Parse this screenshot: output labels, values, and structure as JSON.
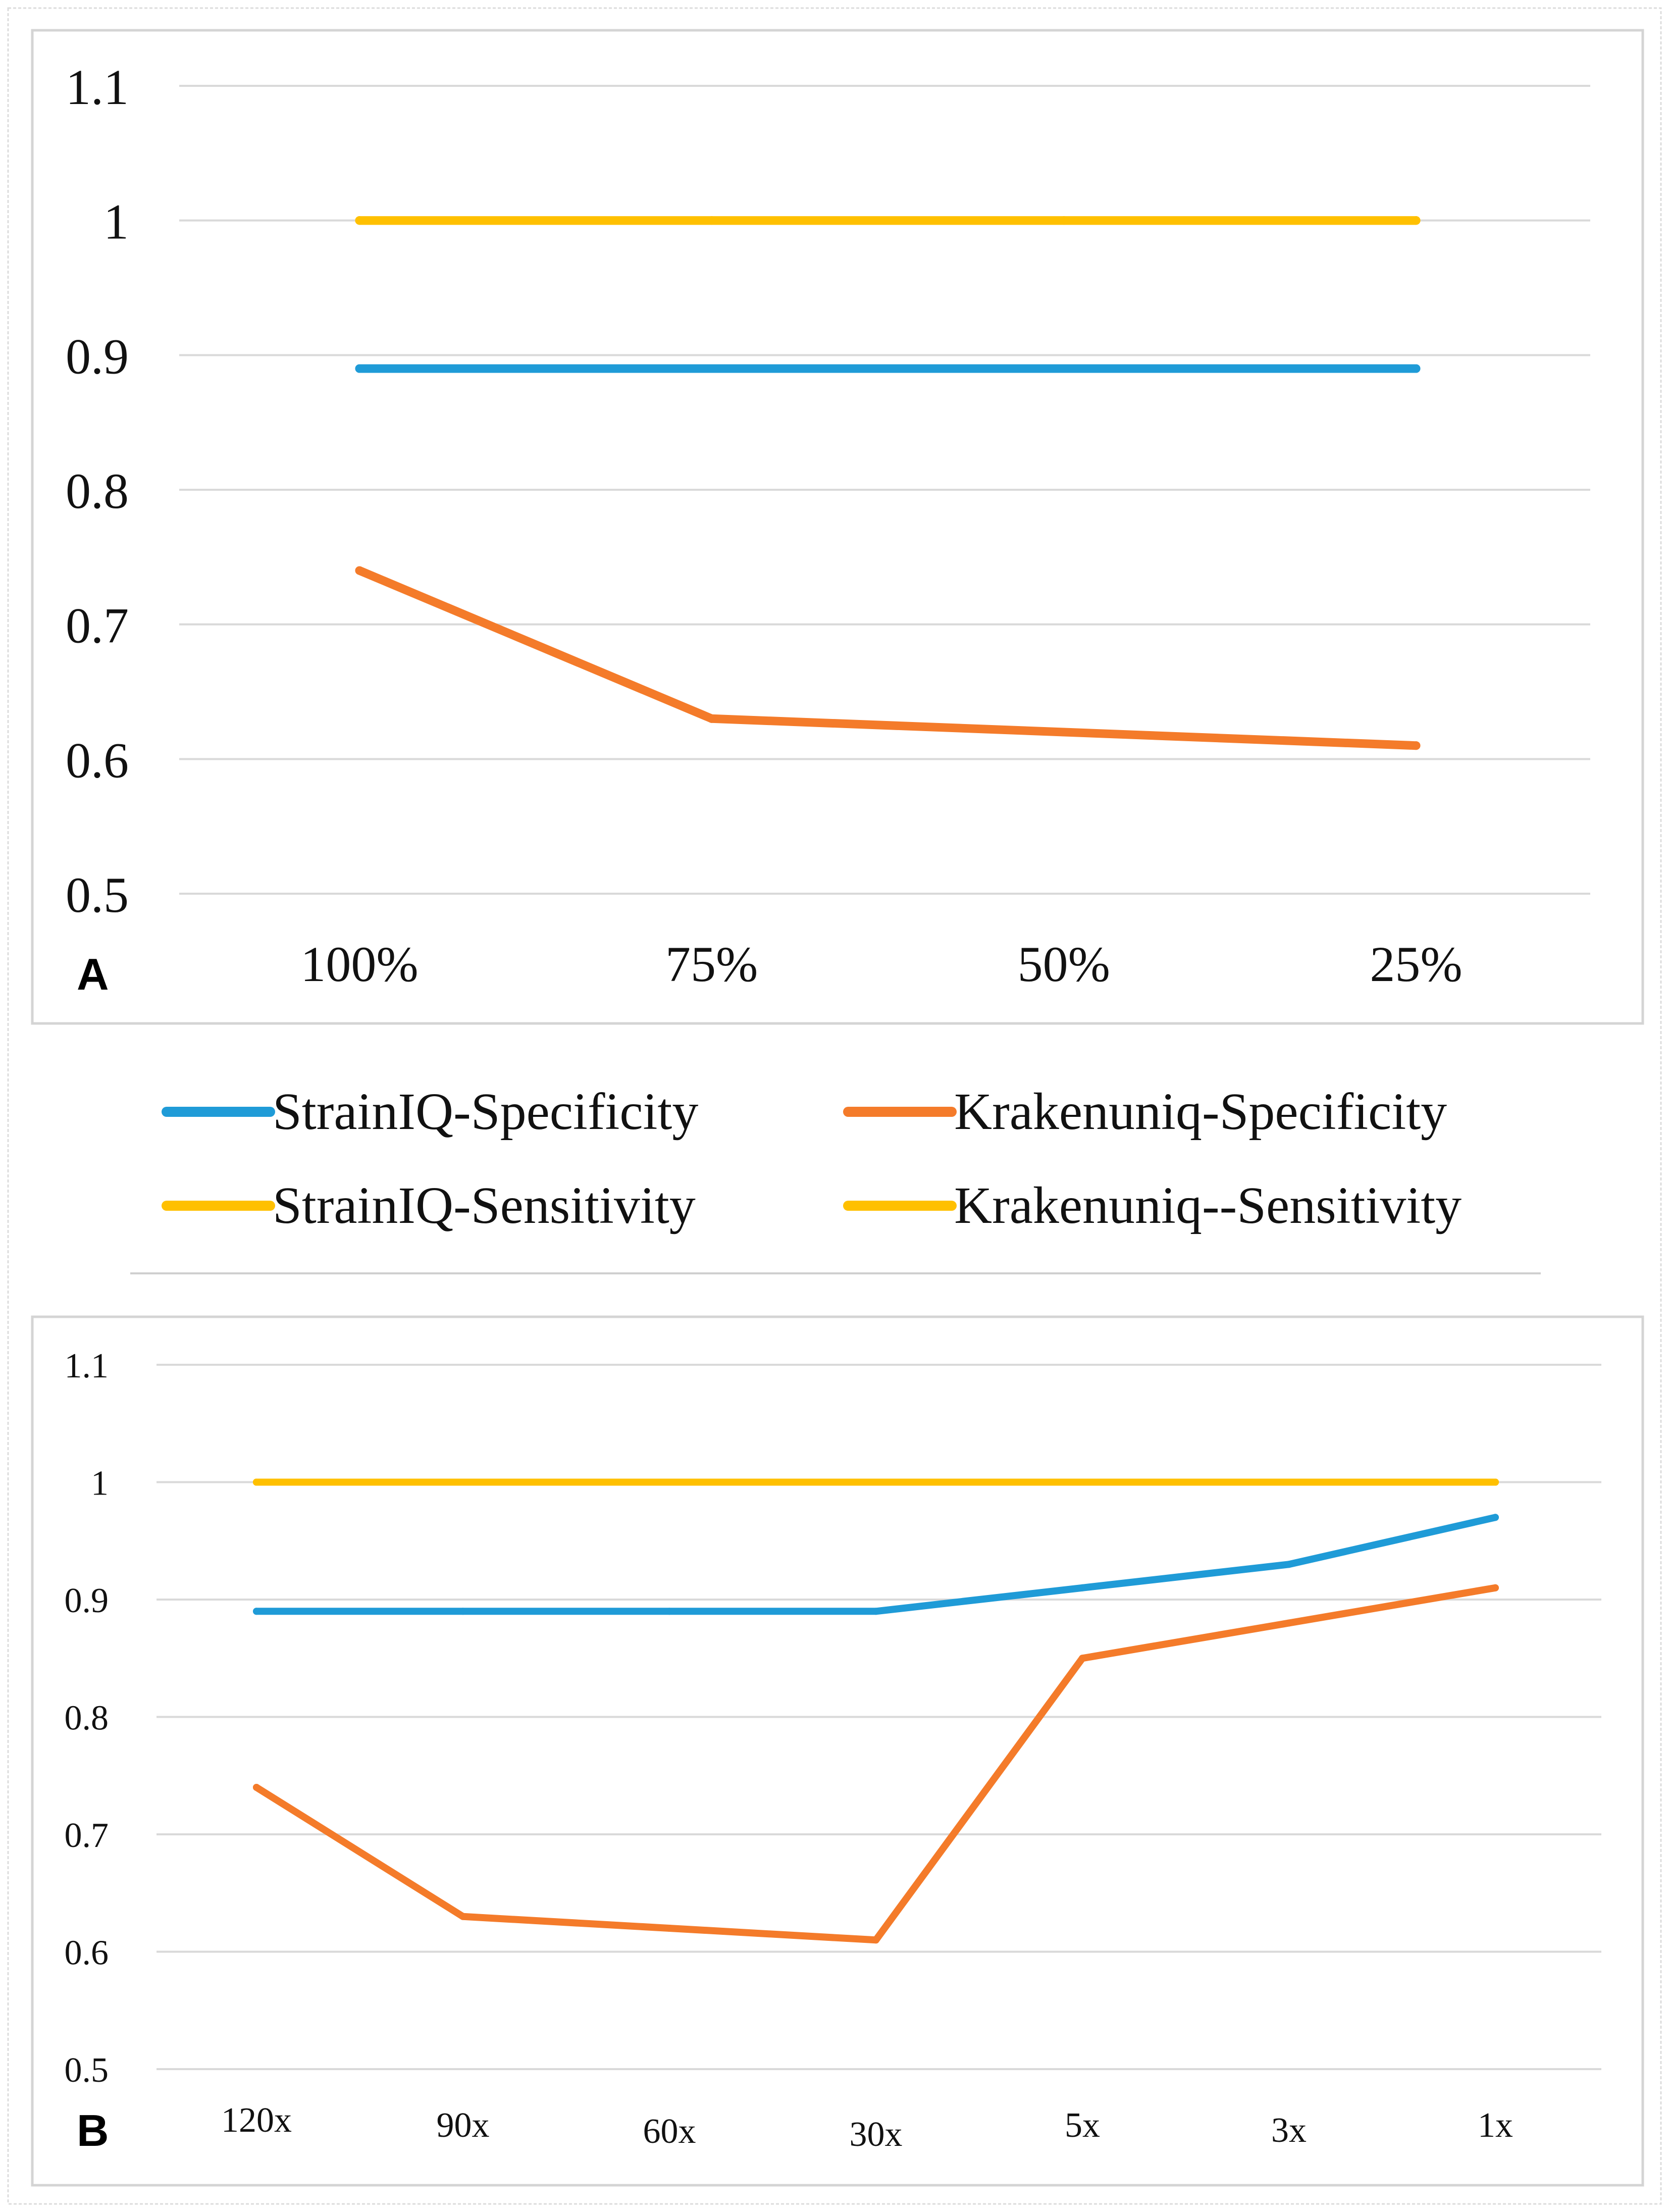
{
  "colors": {
    "strainiq_specificity": "#1f9bd7",
    "krakenuniq_specificity": "#f47b2a",
    "sensitivity": "#ffc000",
    "grid": "#d9d9d9",
    "frame": "#d4d4d4"
  },
  "legend": [
    {
      "label": "StrainIQ-Specificity",
      "color_key": "strainiq_specificity"
    },
    {
      "label": "Krakenuniq-Specificity",
      "color_key": "krakenuniq_specificity"
    },
    {
      "label": "StrainIQ-Sensitivity",
      "color_key": "sensitivity"
    },
    {
      "label": "Krakenuniq--Sensitivity",
      "color_key": "sensitivity"
    }
  ],
  "chart_data": [
    {
      "panel": "A",
      "type": "line",
      "categories": [
        "100%",
        "75%",
        "50%",
        "25%"
      ],
      "yticks": [
        "1.1",
        "1",
        "0.9",
        "0.8",
        "0.7",
        "0.6",
        "0.5"
      ],
      "ylim": [
        0.5,
        1.1
      ],
      "grid": true,
      "series": [
        {
          "name": "StrainIQ-Specificity",
          "color_key": "strainiq_specificity",
          "values": [
            0.89,
            0.89,
            0.89,
            0.89
          ]
        },
        {
          "name": "Krakenuniq-Specificity",
          "color_key": "krakenuniq_specificity",
          "values": [
            0.74,
            0.63,
            0.62,
            0.61
          ]
        },
        {
          "name": "StrainIQ-Sensitivity",
          "color_key": "sensitivity",
          "values": [
            1,
            1,
            1,
            1
          ]
        },
        {
          "name": "Krakenuniq--Sensitivity",
          "color_key": "sensitivity",
          "values": [
            1,
            1,
            1,
            1
          ]
        }
      ]
    },
    {
      "panel": "B",
      "type": "line",
      "categories": [
        "120x",
        "90x",
        "60x",
        "30x",
        "5x",
        "3x",
        "1x"
      ],
      "yticks": [
        "1.1",
        "1",
        "0.9",
        "0.8",
        "0.7",
        "0.6",
        "0.5"
      ],
      "ylim": [
        0.5,
        1.1
      ],
      "grid": true,
      "series": [
        {
          "name": "StrainIQ-Specificity",
          "color_key": "strainiq_specificity",
          "values": [
            0.89,
            0.89,
            0.89,
            0.89,
            0.91,
            0.93,
            0.97
          ]
        },
        {
          "name": "Krakenuniq-Specificity",
          "color_key": "krakenuniq_specificity",
          "values": [
            0.74,
            0.63,
            0.62,
            0.61,
            0.85,
            0.88,
            0.91
          ]
        },
        {
          "name": "StrainIQ-Sensitivity",
          "color_key": "sensitivity",
          "values": [
            1,
            1,
            1,
            1,
            1,
            1,
            1
          ]
        },
        {
          "name": "Krakenuniq--Sensitivity",
          "color_key": "sensitivity",
          "values": [
            1,
            1,
            1,
            1,
            1,
            1,
            1
          ]
        }
      ]
    }
  ]
}
